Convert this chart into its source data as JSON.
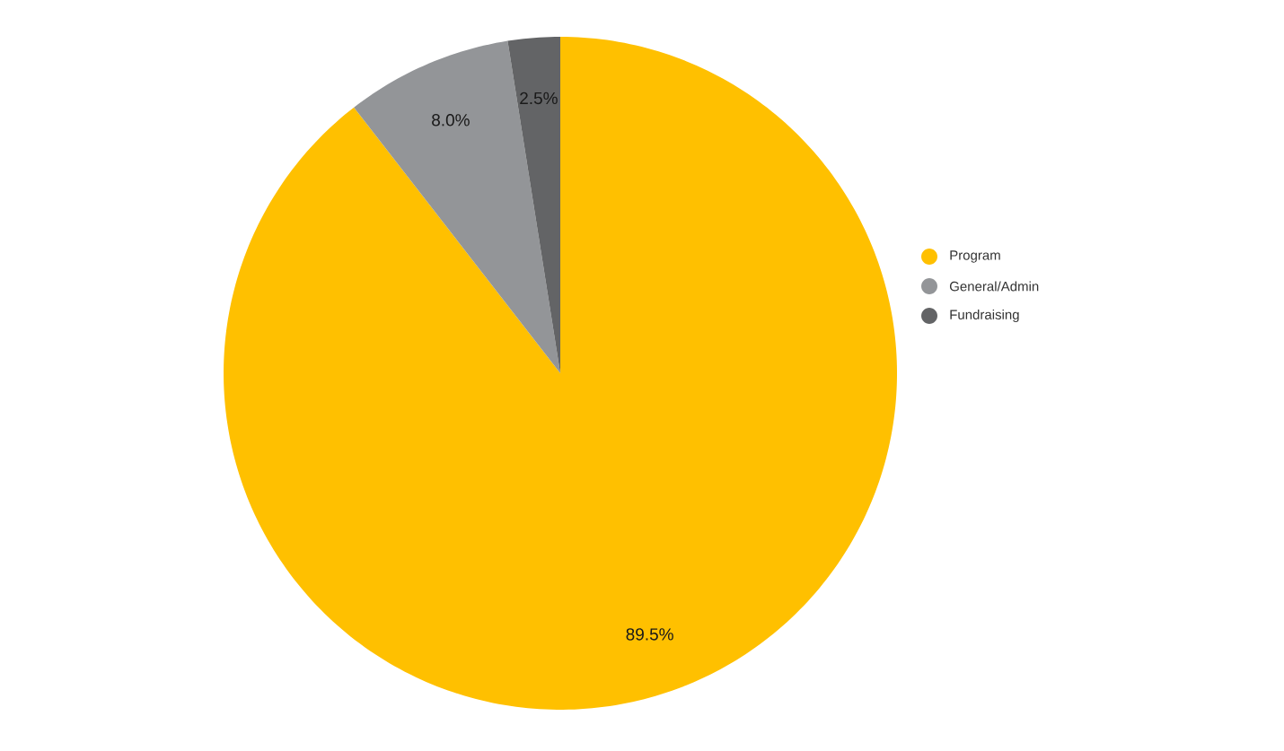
{
  "chart_data": {
    "type": "pie",
    "categories": [
      "Program",
      "General/Admin",
      "Fundraising"
    ],
    "values": [
      89.5,
      8.0,
      2.5
    ],
    "colors": [
      "#ffc000",
      "#939598",
      "#636466"
    ],
    "value_labels": [
      "89.5%",
      "8.0%",
      "2.5%"
    ],
    "legend": "right"
  }
}
